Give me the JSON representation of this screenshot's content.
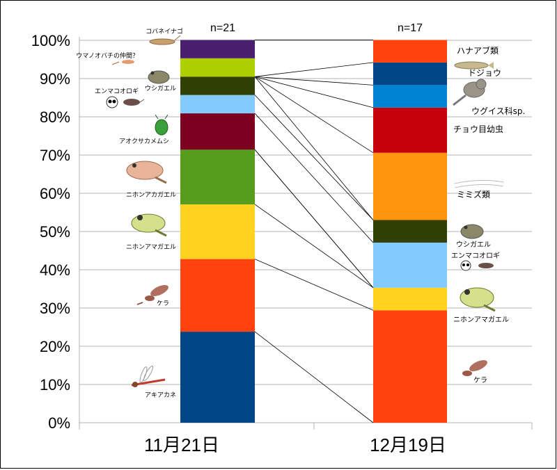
{
  "chart_data": {
    "type": "bar",
    "stacked": "percent",
    "y_ticks": [
      "0%",
      "10%",
      "20%",
      "30%",
      "40%",
      "50%",
      "60%",
      "70%",
      "80%",
      "90%",
      "100%"
    ],
    "ylim": [
      0,
      100
    ],
    "grid": true,
    "categories": [
      "11月21日",
      "12月19日"
    ],
    "counts": [
      "n=21",
      "n=17"
    ],
    "bars": [
      {
        "category": "11月21日",
        "segments": [
          {
            "label": "アキアカネ",
            "value": 23.8,
            "color": "#004586"
          },
          {
            "label": "ケラ",
            "value": 19.0,
            "color": "#ff420e"
          },
          {
            "label": "ニホンアマガエル",
            "value": 14.3,
            "color": "#ffd320"
          },
          {
            "label": "ニホンアカガエル",
            "value": 14.3,
            "color": "#579d1c"
          },
          {
            "label": "アオクサカメムシ",
            "value": 9.5,
            "color": "#7e0021"
          },
          {
            "label": "エンマコオロギ",
            "value": 4.8,
            "color": "#83caff"
          },
          {
            "label": "ウシガエル",
            "value": 4.8,
            "color": "#314004"
          },
          {
            "label": "ウマノオバチの仲間？",
            "value": 4.8,
            "color": "#aecf00"
          },
          {
            "label": "コバネイナゴ",
            "value": 4.8,
            "color": "#4b1f6f"
          }
        ]
      },
      {
        "category": "12月19日",
        "segments": [
          {
            "label": "ケラ",
            "value": 29.4,
            "color": "#ff420e"
          },
          {
            "label": "ニホンアマガエル",
            "value": 5.9,
            "color": "#ffd320"
          },
          {
            "label": "エンマコオロギ",
            "value": 11.8,
            "color": "#83caff"
          },
          {
            "label": "ウシガエル",
            "value": 5.9,
            "color": "#314004"
          },
          {
            "label": "ミミズ類",
            "value": 17.6,
            "color": "#ff950e"
          },
          {
            "label": "チョウ目幼虫",
            "value": 11.8,
            "color": "#c5000b"
          },
          {
            "label": "ウグイス科sp.",
            "value": 5.9,
            "color": "#0084d1"
          },
          {
            "label": "ドジョウ",
            "value": 5.9,
            "color": "#004586"
          },
          {
            "label": "ハナアブ類",
            "value": 5.9,
            "color": "#ff420e"
          }
        ]
      }
    ],
    "connector_color": "#000000",
    "grid_color": "#b3b3b3"
  }
}
